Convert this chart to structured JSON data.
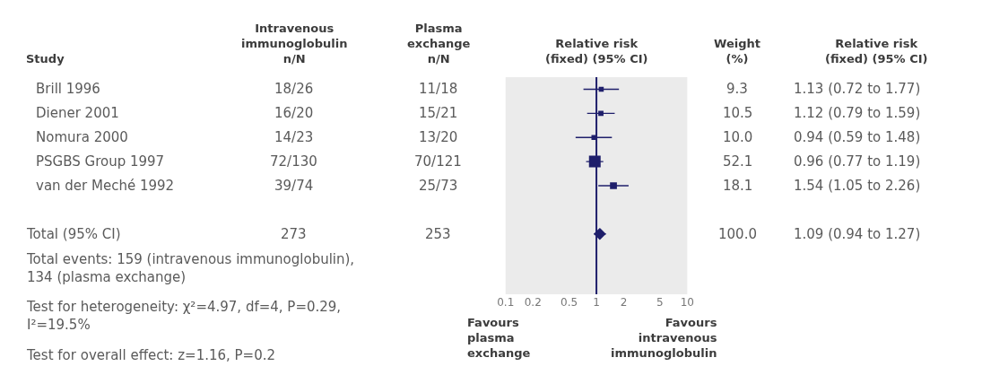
{
  "chart_data": [
    {
      "type": "other",
      "title": "Study",
      "annotations": [
        "Brill 1996",
        "Diener 2001",
        "Nomura 2000",
        "PSGBS Group 1997",
        "van der Meché 1992",
        "Total (95% CI)",
        "Total events: 159 (intravenous immunoglobulin), 134 (plasma exchange)",
        "Test for heterogeneity: χ²=4.97, df=4, P=0.29, I²=19.5%",
        "Test for overall effect: z=1.16, P=0.2"
      ]
    },
    {
      "type": "other",
      "title": "Intravenous immunoglobulin n/N",
      "annotations": [
        "18/26",
        "16/20",
        "14/23",
        "72/130",
        "39/74",
        "273"
      ]
    },
    {
      "type": "other",
      "title": "Plasma exchange n/N",
      "annotations": [
        "11/18",
        "15/21",
        "13/20",
        "70/121",
        "25/73",
        "253"
      ]
    },
    {
      "type": "bubble",
      "title": "Relative risk (fixed) (95% CI)",
      "orientation": "horizontal",
      "categories": [
        null,
        null,
        null,
        null,
        null,
        null,
        null,
        null,
        null
      ],
      "log": "x",
      "xlim": [
        0.1,
        10
      ],
      "xticks": [
        0.1,
        0.2,
        0.5,
        1,
        2,
        5,
        10
      ],
      "grid": false,
      "marker": "square",
      "series": [
        {
          "color": "#1f1f6b",
          "values": [
            1.13,
            1.12,
            0.94,
            0.96,
            1.54,
            null,
            null,
            null,
            null
          ],
          "errors": [
            [
              0.72,
              1.77
            ],
            [
              0.79,
              1.59
            ],
            [
              0.59,
              1.48
            ],
            [
              0.77,
              1.19
            ],
            [
              1.05,
              2.26
            ],
            null,
            null,
            null,
            null
          ],
          "sizes": [
            0.18,
            0.2,
            0.19,
            1,
            0.35,
            null,
            null,
            null,
            null
          ]
        },
        {
          "type": "scatter",
          "marker": "diamond",
          "color": "#1f1f6b",
          "values": [
            null,
            null,
            null,
            null,
            null,
            null,
            1.09,
            null,
            null
          ],
          "errors": [
            null,
            null,
            null,
            null,
            null,
            null,
            [
              0.94,
              1.27
            ],
            null,
            null
          ]
        }
      ],
      "ref_lines": [
        {
          "axis": "x",
          "value": 1,
          "color": "#1f1f6b"
        }
      ],
      "annotations": [
        "Favours plasma exchange",
        "Favours intravenous immunoglobulin"
      ]
    },
    {
      "type": "other",
      "title": "Weight (%)",
      "annotations": [
        "9.3",
        "10.5",
        "10.0",
        "52.1",
        "18.1",
        "100.0"
      ]
    },
    {
      "type": "other",
      "title": "Relative risk (fixed) (95% CI)",
      "annotations": [
        "1.13 (0.72 to 1.77)",
        "1.12 (0.79 to 1.59)",
        "0.94 (0.59 to 1.48)",
        "0.96 (0.77 to 1.19)",
        "1.54 (1.05 to 2.26)",
        "1.09 (0.94 to 1.27)"
      ]
    }
  ]
}
